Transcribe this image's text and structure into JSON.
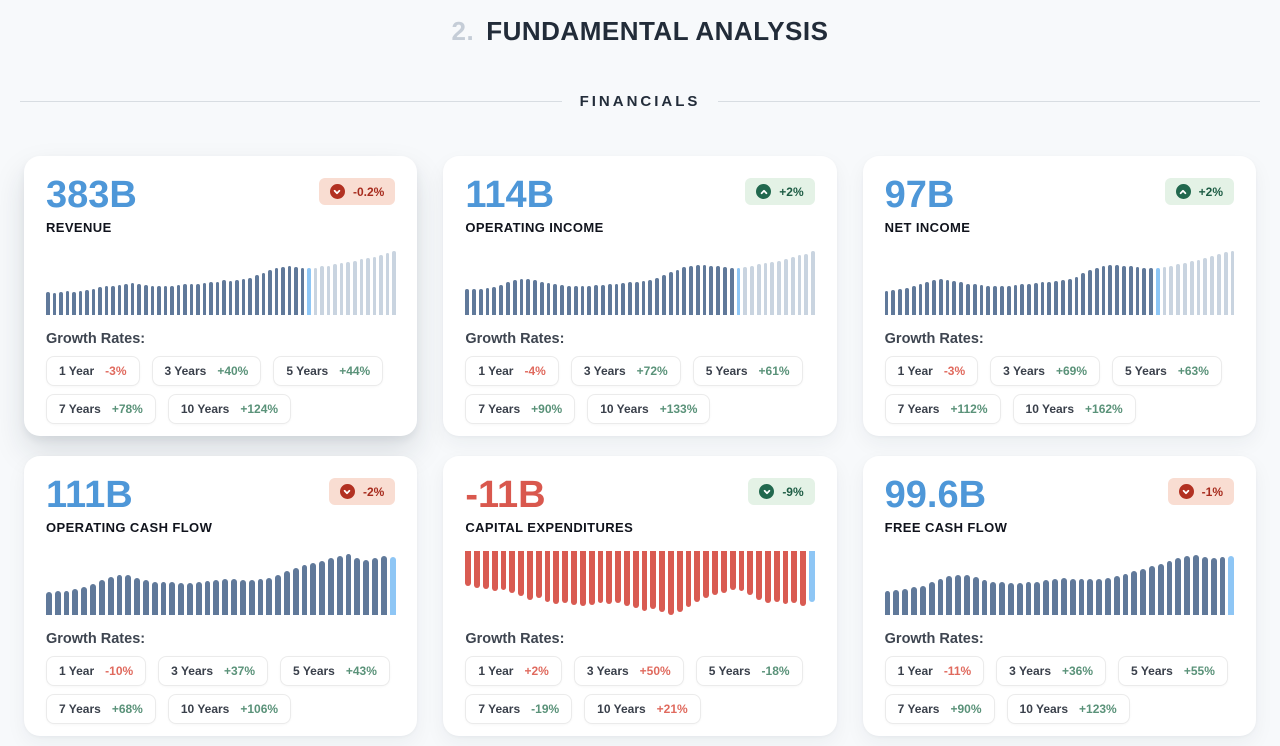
{
  "header": {
    "number": "2.",
    "title": "FUNDAMENTAL ANALYSIS"
  },
  "section_label": "FINANCIALS",
  "labels": {
    "growth_rates": "Growth Rates:"
  },
  "colors": {
    "background": "#f7f9fb",
    "accent_blue": "#4e97d8",
    "accent_red": "#d9584e",
    "bar_slate": "#60799a",
    "bar_light": "#c9d4e0",
    "bar_highlight": "#8ec6f5",
    "bar_red": "#d95b52",
    "badge_green_bg": "#e4f2e6",
    "badge_green_fg": "#1d5c44",
    "badge_red_bg": "#f9ddd2",
    "badge_red_fg": "#a72b1d",
    "pill_green": "#5a9279",
    "pill_red": "#e06a5e"
  },
  "cards": [
    {
      "value": "383B",
      "value_tone": "blue",
      "label": "REVENUE",
      "badge": {
        "text": "-0.2%",
        "tone": "red",
        "direction": "down"
      },
      "rates": [
        {
          "label": "1 Year",
          "value": "-3%",
          "tone": "red"
        },
        {
          "label": "3 Years",
          "value": "+40%",
          "tone": "green"
        },
        {
          "label": "5 Years",
          "value": "+44%",
          "tone": "green"
        },
        {
          "label": "7 Years",
          "value": "+78%",
          "tone": "green"
        },
        {
          "label": "10 Years",
          "value": "+124%",
          "tone": "green"
        }
      ],
      "chart": {
        "type": "bar",
        "orientation": "up",
        "bar_tone": "slate",
        "highlight_index": 40,
        "light_from": 41,
        "values": [
          36,
          35,
          36,
          37,
          36,
          38,
          39,
          41,
          43,
          45,
          46,
          47,
          49,
          50,
          48,
          47,
          46,
          45,
          46,
          46,
          47,
          48,
          48,
          49,
          50,
          51,
          52,
          54,
          53,
          55,
          57,
          58,
          62,
          66,
          70,
          73,
          75,
          76,
          75,
          74,
          73,
          74,
          76,
          77,
          79,
          81,
          83,
          85,
          87,
          89,
          91,
          94,
          97,
          100
        ]
      }
    },
    {
      "value": "114B",
      "value_tone": "blue",
      "label": "OPERATING INCOME",
      "badge": {
        "text": "+2%",
        "tone": "green",
        "direction": "up"
      },
      "rates": [
        {
          "label": "1 Year",
          "value": "-4%",
          "tone": "red"
        },
        {
          "label": "3 Years",
          "value": "+72%",
          "tone": "green"
        },
        {
          "label": "5 Years",
          "value": "+61%",
          "tone": "green"
        },
        {
          "label": "7 Years",
          "value": "+90%",
          "tone": "green"
        },
        {
          "label": "10 Years",
          "value": "+133%",
          "tone": "green"
        }
      ],
      "chart": {
        "type": "bar",
        "orientation": "up",
        "bar_tone": "slate",
        "highlight_index": 40,
        "light_from": 41,
        "values": [
          40,
          40,
          41,
          42,
          44,
          47,
          51,
          54,
          56,
          56,
          54,
          52,
          50,
          48,
          47,
          46,
          45,
          45,
          46,
          47,
          47,
          48,
          49,
          50,
          51,
          52,
          53,
          55,
          58,
          62,
          67,
          71,
          75,
          77,
          78,
          78,
          77,
          76,
          75,
          74,
          74,
          75,
          77,
          79,
          81,
          83,
          85,
          87,
          90,
          93,
          96,
          100
        ]
      }
    },
    {
      "value": "97B",
      "value_tone": "blue",
      "label": "NET INCOME",
      "badge": {
        "text": "+2%",
        "tone": "green",
        "direction": "up"
      },
      "rates": [
        {
          "label": "1 Year",
          "value": "-3%",
          "tone": "red"
        },
        {
          "label": "3 Years",
          "value": "+69%",
          "tone": "green"
        },
        {
          "label": "5 Years",
          "value": "+63%",
          "tone": "green"
        },
        {
          "label": "7 Years",
          "value": "+112%",
          "tone": "green"
        },
        {
          "label": "10 Years",
          "value": "+162%",
          "tone": "green"
        }
      ],
      "chart": {
        "type": "bar",
        "orientation": "up",
        "bar_tone": "slate",
        "highlight_index": 40,
        "light_from": 41,
        "values": [
          38,
          39,
          40,
          42,
          45,
          48,
          52,
          55,
          56,
          55,
          53,
          51,
          49,
          48,
          47,
          46,
          46,
          45,
          46,
          47,
          48,
          49,
          50,
          51,
          52,
          53,
          55,
          57,
          60,
          65,
          70,
          74,
          77,
          78,
          78,
          77,
          76,
          75,
          74,
          73,
          73,
          75,
          77,
          79,
          81,
          84,
          86,
          89,
          92,
          95,
          98,
          100
        ]
      }
    },
    {
      "value": "111B",
      "value_tone": "blue",
      "label": "OPERATING CASH FLOW",
      "badge": {
        "text": "-2%",
        "tone": "red",
        "direction": "down"
      },
      "rates": [
        {
          "label": "1 Year",
          "value": "-10%",
          "tone": "red"
        },
        {
          "label": "3 Years",
          "value": "+37%",
          "tone": "green"
        },
        {
          "label": "5 Years",
          "value": "+43%",
          "tone": "green"
        },
        {
          "label": "7 Years",
          "value": "+68%",
          "tone": "green"
        },
        {
          "label": "10 Years",
          "value": "+106%",
          "tone": "green"
        }
      ],
      "chart": {
        "type": "bar",
        "orientation": "up",
        "bar_tone": "slate",
        "highlight_index": 39,
        "light_from": null,
        "values": [
          36,
          37,
          38,
          40,
          43,
          48,
          55,
          60,
          63,
          62,
          58,
          54,
          52,
          51,
          51,
          50,
          50,
          51,
          53,
          55,
          57,
          56,
          55,
          55,
          56,
          58,
          62,
          68,
          74,
          78,
          81,
          85,
          89,
          92,
          95,
          89,
          86,
          89,
          92,
          91
        ]
      }
    },
    {
      "value": "-11B",
      "value_tone": "red",
      "label": "CAPITAL EXPENDITURES",
      "badge": {
        "text": "-9%",
        "tone": "green",
        "direction": "down"
      },
      "rates": [
        {
          "label": "1 Year",
          "value": "+2%",
          "tone": "red"
        },
        {
          "label": "3 Years",
          "value": "+50%",
          "tone": "red"
        },
        {
          "label": "5 Years",
          "value": "-18%",
          "tone": "green"
        },
        {
          "label": "7 Years",
          "value": "-19%",
          "tone": "green"
        },
        {
          "label": "10 Years",
          "value": "+21%",
          "tone": "red"
        }
      ],
      "chart": {
        "type": "bar",
        "orientation": "down",
        "bar_tone": "red",
        "highlight_index": 39,
        "light_from": null,
        "values": [
          55,
          58,
          60,
          63,
          61,
          66,
          71,
          76,
          74,
          79,
          83,
          81,
          84,
          86,
          84,
          81,
          83,
          81,
          86,
          89,
          93,
          91,
          96,
          100,
          96,
          87,
          79,
          73,
          69,
          66,
          61,
          63,
          69,
          76,
          81,
          79,
          83,
          81,
          86,
          80
        ]
      }
    },
    {
      "value": "99.6B",
      "value_tone": "blue",
      "label": "FREE CASH FLOW",
      "badge": {
        "text": "-1%",
        "tone": "red",
        "direction": "down"
      },
      "rates": [
        {
          "label": "1 Year",
          "value": "-11%",
          "tone": "red"
        },
        {
          "label": "3 Years",
          "value": "+36%",
          "tone": "green"
        },
        {
          "label": "5 Years",
          "value": "+55%",
          "tone": "green"
        },
        {
          "label": "7 Years",
          "value": "+90%",
          "tone": "green"
        },
        {
          "label": "10 Years",
          "value": "+123%",
          "tone": "green"
        }
      ],
      "chart": {
        "type": "bar",
        "orientation": "up",
        "bar_tone": "slate",
        "highlight_index": 39,
        "light_from": null,
        "values": [
          38,
          39,
          40,
          43,
          46,
          51,
          57,
          61,
          63,
          62,
          59,
          55,
          52,
          51,
          50,
          50,
          51,
          52,
          54,
          57,
          58,
          57,
          56,
          56,
          57,
          58,
          61,
          64,
          68,
          72,
          76,
          80,
          85,
          89,
          92,
          94,
          91,
          89,
          91,
          92
        ]
      }
    }
  ]
}
